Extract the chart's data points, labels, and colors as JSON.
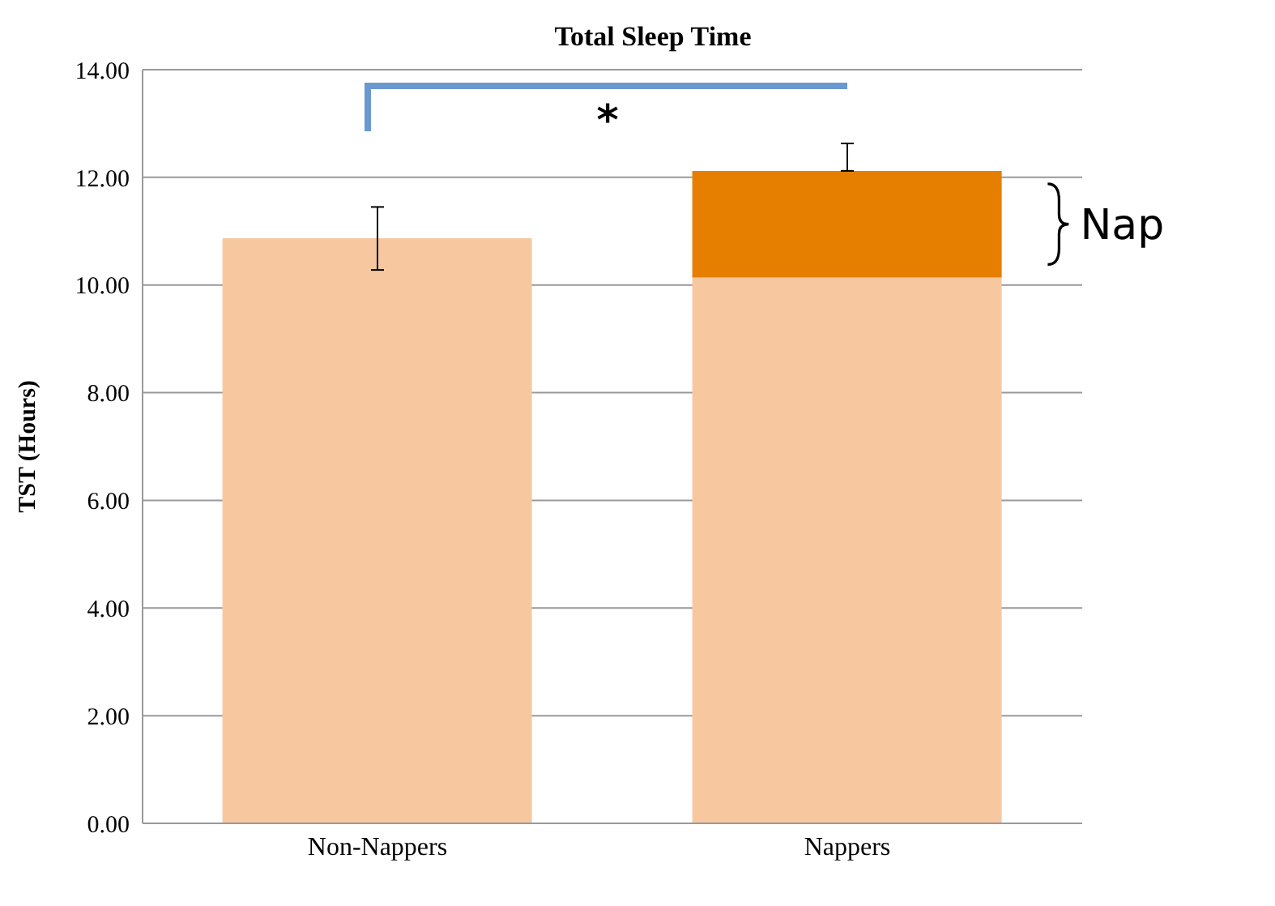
{
  "chart_data": {
    "type": "bar",
    "title": "Total Sleep Time",
    "ylabel": "TST (Hours)",
    "categories": [
      "Non-Nappers",
      "Nappers"
    ],
    "stacked": true,
    "series": [
      {
        "color": "#f7c8a0",
        "values": [
          10.87,
          10.14
        ],
        "errors": [
          [
            10.28,
            11.45
          ],
          null
        ]
      },
      {
        "name": "Nap",
        "color": "#e67e00",
        "values": [
          null,
          1.98
        ],
        "errors": [
          null,
          [
            12.12,
            12.63
          ]
        ]
      }
    ],
    "ylim": [
      0,
      14
    ],
    "yticks": [
      {
        "value": 0,
        "label": "0.00"
      },
      {
        "value": 2,
        "label": "2.00"
      },
      {
        "value": 4,
        "label": "4.00"
      },
      {
        "value": 6,
        "label": "6.00"
      },
      {
        "value": 8,
        "label": "8.00"
      },
      {
        "value": 10,
        "label": "10.00"
      },
      {
        "value": 12,
        "label": "12.00"
      },
      {
        "value": 14,
        "label": "14.00"
      }
    ],
    "grid": "y",
    "legend": false,
    "annotations": [
      "*"
    ]
  }
}
